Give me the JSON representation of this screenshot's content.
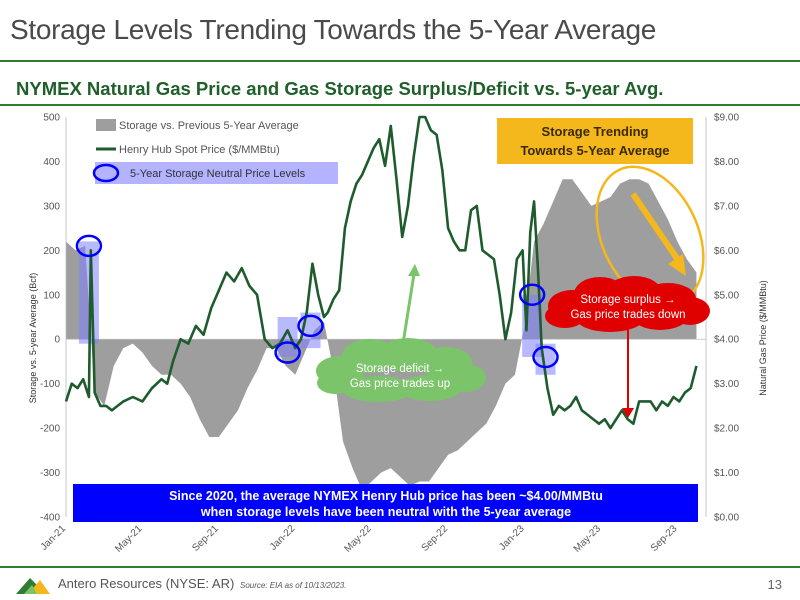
{
  "slide": {
    "title": "Storage Levels Trending Towards the 5-Year Average",
    "subtitle": "NYMEX Natural Gas Price and Gas Storage Surplus/Deficit vs. 5-year Avg."
  },
  "footer": {
    "company": "Antero Resources (NYSE: AR)",
    "source": "Source: EIA as of 10/13/2023.",
    "page_number": "13"
  },
  "colors": {
    "accent_green": "#2e7d32",
    "storage_gray": "#9e9e9e",
    "price_green": "#1e5c2e",
    "highlight_blue": "#0000ff",
    "callout_red": "#e00000",
    "callout_green": "#7cc46a",
    "callout_orange": "#f5b81c"
  },
  "chart_data": {
    "type": "area",
    "ylabel": "Storage vs. 5-year Average (Bcf)",
    "y2label": "Natural Gas Price ($/MMBtu)",
    "ylim": [
      -400,
      500
    ],
    "y2lim": [
      0,
      9
    ],
    "yticks": [
      "500",
      "400",
      "300",
      "200",
      "100",
      "0",
      "-100",
      "-200",
      "-300",
      "-400"
    ],
    "y2ticks": [
      "$9.00",
      "$8.00",
      "$7.00",
      "$6.00",
      "$5.00",
      "$4.00",
      "$3.00",
      "$2.00",
      "$1.00",
      "$0.00"
    ],
    "x_tick_labels": [
      "Jan-21",
      "May-21",
      "Sep-21",
      "Jan-22",
      "May-22",
      "Sep-22",
      "Jan-23",
      "May-23",
      "Sep-23"
    ],
    "x_tick_months": [
      0,
      4,
      8,
      12,
      16,
      20,
      24,
      28,
      32
    ],
    "x_range_months": [
      0,
      33.5
    ],
    "legend_position": "top-left",
    "series": [
      {
        "name": "Storage vs. Previous 5-Year Average",
        "kind": "area",
        "x": [
          0,
          0.5,
          1,
          1.5,
          2,
          2.5,
          3,
          3.5,
          4,
          4.5,
          5,
          5.5,
          6,
          6.5,
          7,
          7.5,
          8,
          8.5,
          9,
          9.5,
          10,
          10.5,
          11,
          11.5,
          12,
          12.5,
          13,
          13.5,
          14,
          14.5,
          15,
          15.5,
          16,
          16.5,
          17,
          17.5,
          18,
          18.5,
          19,
          19.5,
          20,
          20.5,
          21,
          21.5,
          22,
          22.5,
          23,
          23.5,
          24,
          24.5,
          25,
          25.5,
          26,
          26.5,
          27,
          27.5,
          28,
          28.5,
          29,
          29.5,
          30,
          30.5,
          31,
          31.5,
          32,
          32.5,
          33
        ],
        "values": [
          220,
          200,
          210,
          -120,
          -150,
          -60,
          -20,
          -10,
          -30,
          -60,
          -80,
          -80,
          -100,
          -130,
          -180,
          -220,
          -220,
          -190,
          -160,
          -110,
          -70,
          -20,
          -20,
          -60,
          -80,
          -30,
          20,
          40,
          -70,
          -230,
          -290,
          -340,
          -320,
          -300,
          -290,
          -310,
          -330,
          -320,
          -320,
          -290,
          -260,
          -250,
          -230,
          -210,
          -190,
          -150,
          -100,
          -80,
          30,
          220,
          260,
          310,
          360,
          360,
          330,
          300,
          310,
          320,
          350,
          360,
          360,
          350,
          310,
          270,
          220,
          180,
          150
        ]
      },
      {
        "name": "Henry Hub Spot Price ($/MMBtu)",
        "kind": "line",
        "x": [
          0,
          0.3,
          0.6,
          0.9,
          1.2,
          1.3,
          1.5,
          1.8,
          2.1,
          2.4,
          2.7,
          3.0,
          3.5,
          4.0,
          4.5,
          5.0,
          5.3,
          5.6,
          6.0,
          6.4,
          6.8,
          7.2,
          7.6,
          8.0,
          8.4,
          8.8,
          9.2,
          9.6,
          10.0,
          10.4,
          10.8,
          11.2,
          11.6,
          12.0,
          12.3,
          12.6,
          12.9,
          13.2,
          13.5,
          13.7,
          14.0,
          14.3,
          14.6,
          14.9,
          15.2,
          15.5,
          15.8,
          16.1,
          16.4,
          16.7,
          17.0,
          17.3,
          17.6,
          17.9,
          18.2,
          18.5,
          18.8,
          19.1,
          19.4,
          19.7,
          20.0,
          20.3,
          20.6,
          20.9,
          21.2,
          21.5,
          21.8,
          22.1,
          22.4,
          22.7,
          23.0,
          23.3,
          23.6,
          23.9,
          24.1,
          24.3,
          24.5,
          24.7,
          24.9,
          25.2,
          25.5,
          25.8,
          26.1,
          26.4,
          26.7,
          27.0,
          27.3,
          27.6,
          27.9,
          28.2,
          28.5,
          28.8,
          29.1,
          29.4,
          29.7,
          30.0,
          30.3,
          30.6,
          30.9,
          31.2,
          31.5,
          31.8,
          32.1,
          32.4,
          32.7,
          33.0
        ],
        "values": [
          2.6,
          3.0,
          2.9,
          3.1,
          2.7,
          6.0,
          2.8,
          2.5,
          2.5,
          2.4,
          2.5,
          2.6,
          2.7,
          2.6,
          2.9,
          3.1,
          3.0,
          3.5,
          4.0,
          3.9,
          4.3,
          4.1,
          4.7,
          5.1,
          5.5,
          5.3,
          5.6,
          5.2,
          5.0,
          4.0,
          3.8,
          3.9,
          4.2,
          3.8,
          4.0,
          4.6,
          5.7,
          5.0,
          4.5,
          4.6,
          4.9,
          5.1,
          6.5,
          7.1,
          7.5,
          7.7,
          8.0,
          8.3,
          8.5,
          7.9,
          8.8,
          7.6,
          6.3,
          7.0,
          8.1,
          9.0,
          9.2,
          8.7,
          8.6,
          7.8,
          6.5,
          6.2,
          6.0,
          6.0,
          6.9,
          7.0,
          6.0,
          5.9,
          5.8,
          5.0,
          4.0,
          4.6,
          5.8,
          6.0,
          4.2,
          6.4,
          7.1,
          5.6,
          3.8,
          2.9,
          2.3,
          2.5,
          2.4,
          2.5,
          2.7,
          2.4,
          2.3,
          2.2,
          2.1,
          2.2,
          2.0,
          2.2,
          2.4,
          2.2,
          2.1,
          2.6,
          2.6,
          2.6,
          2.4,
          2.6,
          2.5,
          2.7,
          2.6,
          2.8,
          2.9,
          3.4
        ]
      }
    ],
    "legend": {
      "storage": "Storage vs. Previous 5-Year Average",
      "price": "Henry Hub Spot Price ($/MMBtu)",
      "neutral": "5-Year Storage Neutral Price Levels"
    },
    "neutral_markers": [
      {
        "x": 1.2,
        "y2": 6.1,
        "band": [
          6.2,
          3.9
        ]
      },
      {
        "x": 11.6,
        "y2": 3.7,
        "band": [
          4.5,
          3.6
        ]
      },
      {
        "x": 12.8,
        "y2": 4.3,
        "band": [
          4.6,
          3.8
        ]
      },
      {
        "x": 24.4,
        "y2": 5.0,
        "band": [
          5.0,
          3.6
        ]
      },
      {
        "x": 25.1,
        "y2": 3.6,
        "band": [
          3.9,
          3.2
        ]
      }
    ],
    "annotations": {
      "orange_box": "Storage Trending Towards 5-Year Average",
      "red_cloud": "Storage surplus → Gas price trades down",
      "green_cloud": "Storage deficit → Gas price trades up",
      "bottom_banner": "Since 2020, the average NYMEX Henry Hub price has been ~$4.00/MMBtu when storage levels have been neutral with the 5-year average"
    }
  }
}
